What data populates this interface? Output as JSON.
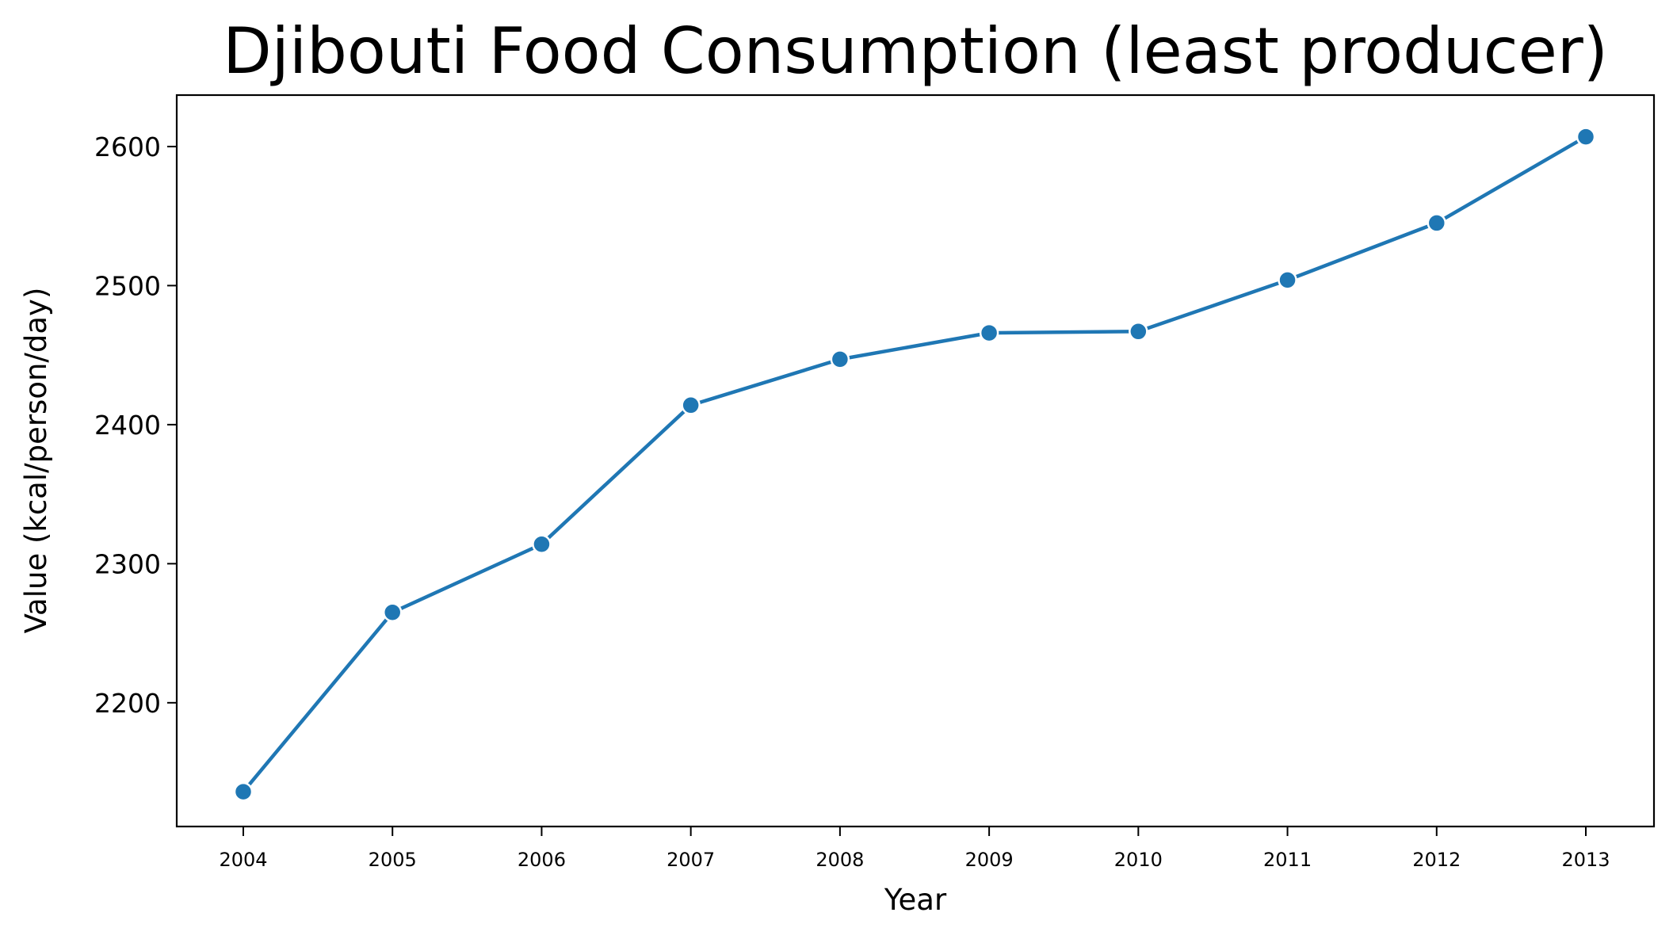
{
  "chart_data": {
    "type": "line",
    "title": "Djibouti Food Consumption (least producer)",
    "xlabel": "Year",
    "ylabel": "Value (kcal/person/day)",
    "x": [
      "2004",
      "2005",
      "2006",
      "2007",
      "2008",
      "2009",
      "2010",
      "2011",
      "2012",
      "2013"
    ],
    "series": [
      {
        "values": [
          2136,
          2265,
          2314,
          2414,
          2447,
          2466,
          2467,
          2504,
          2545,
          2607
        ]
      }
    ],
    "y_ticks": [
      2200,
      2300,
      2400,
      2500,
      2600
    ],
    "ylim": [
      2111,
      2637
    ],
    "grid": false,
    "legend": "none",
    "colors": {
      "line": "#1f77b4",
      "marker": "#1f77b4",
      "marker_edge": "#ffffff",
      "axes": "#000000"
    }
  }
}
